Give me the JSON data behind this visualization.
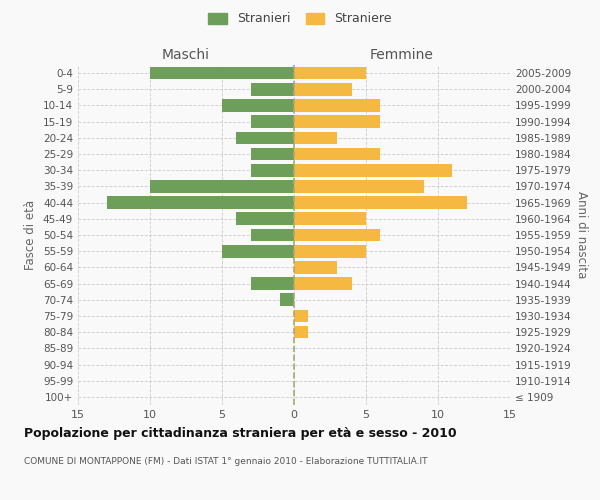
{
  "age_groups": [
    "100+",
    "95-99",
    "90-94",
    "85-89",
    "80-84",
    "75-79",
    "70-74",
    "65-69",
    "60-64",
    "55-59",
    "50-54",
    "45-49",
    "40-44",
    "35-39",
    "30-34",
    "25-29",
    "20-24",
    "15-19",
    "10-14",
    "5-9",
    "0-4"
  ],
  "birth_years": [
    "≤ 1909",
    "1910-1914",
    "1915-1919",
    "1920-1924",
    "1925-1929",
    "1930-1934",
    "1935-1939",
    "1940-1944",
    "1945-1949",
    "1950-1954",
    "1955-1959",
    "1960-1964",
    "1965-1969",
    "1970-1974",
    "1975-1979",
    "1980-1984",
    "1985-1989",
    "1990-1994",
    "1995-1999",
    "2000-2004",
    "2005-2009"
  ],
  "males": [
    0,
    0,
    0,
    0,
    0,
    0,
    1,
    3,
    0,
    5,
    3,
    4,
    13,
    10,
    3,
    3,
    4,
    3,
    5,
    3,
    10
  ],
  "females": [
    0,
    0,
    0,
    0,
    1,
    1,
    0,
    4,
    3,
    5,
    6,
    5,
    12,
    9,
    11,
    6,
    3,
    6,
    6,
    4,
    5
  ],
  "male_color": "#6d9e5a",
  "female_color": "#f5b942",
  "background_color": "#f9f9f9",
  "grid_color": "#cccccc",
  "title": "Popolazione per cittadinanza straniera per età e sesso - 2010",
  "subtitle": "COMUNE DI MONTAPPONE (FM) - Dati ISTAT 1° gennaio 2010 - Elaborazione TUTTITALIA.IT",
  "xlabel_left": "Maschi",
  "xlabel_right": "Femmine",
  "ylabel_left": "Fasce di età",
  "ylabel_right": "Anni di nascita",
  "legend_male": "Stranieri",
  "legend_female": "Straniere",
  "xlim": 15,
  "bar_height": 0.78
}
